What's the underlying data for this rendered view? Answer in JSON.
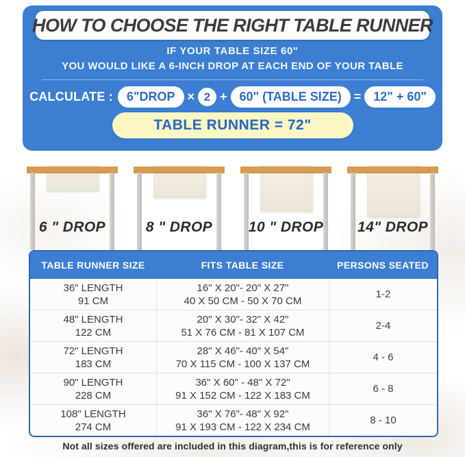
{
  "colors": {
    "panel-blue": "#3b7ed2",
    "pill-text-blue": "#2d6cc7",
    "result-yellow": "#fbf7c3",
    "wood-tan": "#d79b51",
    "runner-cream": "#f1ecdf",
    "border-navy": "#2e66ae",
    "title-gray": "#3c3c3c"
  },
  "header": {
    "title": "HOW TO CHOOSE THE RIGHT TABLE RUNNER",
    "subtitle_line1": "IF YOUR TABLE SIZE 60\"",
    "subtitle_line2": "YOU WOULD LIKE A 6-INCH DROP AT EACH END OF YOUR TABLE"
  },
  "calc": {
    "label": "CALCULATE :",
    "drop_pill": "6\"DROP",
    "times_sign": "×",
    "multiplier": "2",
    "plus_sign": "+",
    "table_size_pill": "60\" (TABLE SIZE)",
    "equals_sign": "=",
    "sum_pill": "12\" + 60\"",
    "result": "TABLE RUNNER = 72\""
  },
  "drop_figures": [
    {
      "label": "6 \" DROP"
    },
    {
      "label": "8 \" DROP"
    },
    {
      "label": "10 \" DROP"
    },
    {
      "label": "14\" DROP"
    }
  ],
  "size_table": {
    "columns": [
      "TABLE RUNNER SIZE",
      "FITS TABLE SIZE",
      "PERSONS SEATED"
    ],
    "rows": [
      {
        "runner_in": "36\" LENGTH",
        "runner_cm": "91 CM",
        "fits_in": "16\" X 20\"- 20\" X 27\"",
        "fits_cm": "40 X 50 CM - 50 X 70 CM",
        "persons": "1-2"
      },
      {
        "runner_in": "48\" LENGTH",
        "runner_cm": "122 CM",
        "fits_in": "20\" X 30\"- 32\" X 42\"",
        "fits_cm": "51 X 76 CM - 81 X 107 CM",
        "persons": "2-4"
      },
      {
        "runner_in": "72\" LENGTH",
        "runner_cm": "183 CM",
        "fits_in": "28\" X 46\"- 40\" X 54\"",
        "fits_cm": "70 X 115 CM - 100 X 137 CM",
        "persons": "4 - 6"
      },
      {
        "runner_in": "90\" LENGTH",
        "runner_cm": "228 CM",
        "fits_in": "36\" X 60\" - 48\" X 72\"",
        "fits_cm": "91 X 152 CM - 122 X 183 CM",
        "persons": "6 - 8"
      },
      {
        "runner_in": "108\" LENGTH",
        "runner_cm": "274 CM",
        "fits_in": "36\" X 76\"- 48\" X 92\"",
        "fits_cm": "91 X 193 CM - 122 X 234 CM",
        "persons": "8 - 10"
      }
    ]
  },
  "footnote": "Not all sizes offered are included in this diagram,this is for reference only"
}
